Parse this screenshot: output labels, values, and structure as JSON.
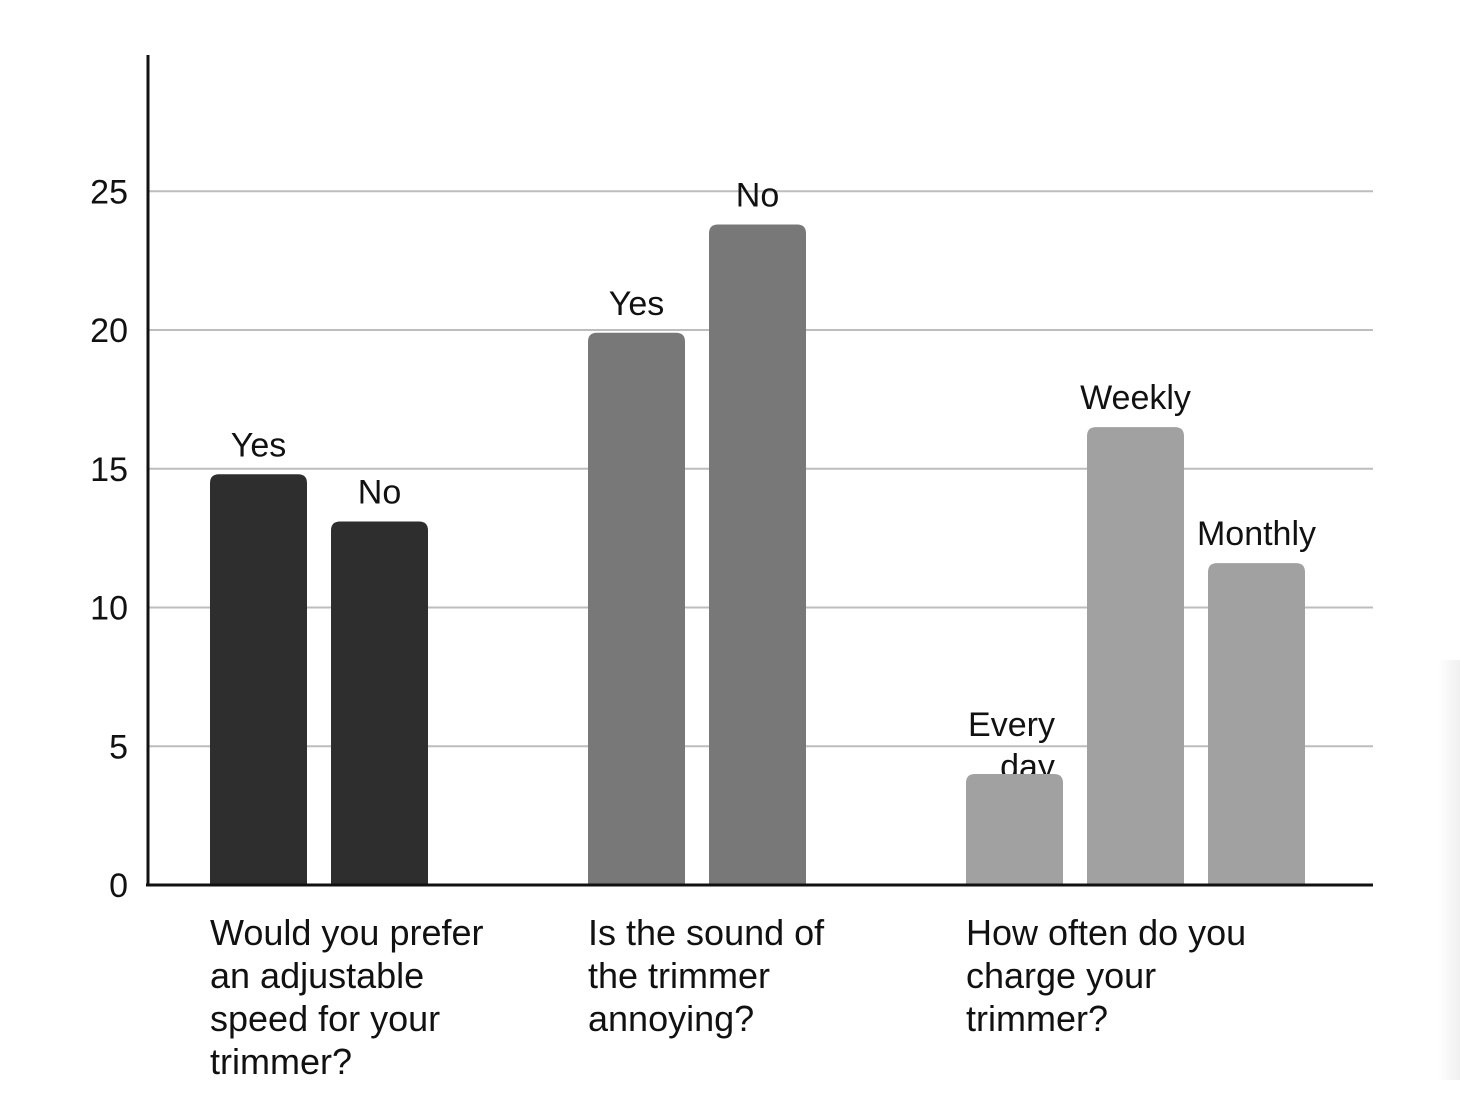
{
  "chart_data": {
    "type": "bar",
    "title": "",
    "xlabel": "",
    "ylabel": "",
    "ylim": [
      0,
      30
    ],
    "yticks": [
      0,
      5,
      10,
      15,
      20,
      25
    ],
    "grid": true,
    "legend": "none",
    "groups": [
      {
        "label": "Would you prefer an adjustable speed for your trimmer?",
        "label_lines": [
          "Would you prefer",
          "an adjustable",
          "speed for your",
          "trimmer?"
        ],
        "color": "#2e2e2e",
        "bars": [
          {
            "label": "Yes",
            "value": 14.8
          },
          {
            "label": "No",
            "value": 13.1
          }
        ]
      },
      {
        "label": "Is the sound of the trimmer annoying?",
        "label_lines": [
          "Is the sound of",
          "the trimmer",
          "annoying?"
        ],
        "color": "#787878",
        "bars": [
          {
            "label": "Yes",
            "value": 19.9
          },
          {
            "label": "No",
            "value": 23.8
          }
        ]
      },
      {
        "label": "How often do you charge your trimmer?",
        "label_lines": [
          "How often do you",
          "charge your",
          "trimmer?"
        ],
        "color": "#a1a1a1",
        "bars": [
          {
            "label": "Every day",
            "value": 4.0
          },
          {
            "label": "Weekly",
            "value": 16.5
          },
          {
            "label": "Monthly",
            "value": 11.6
          }
        ]
      }
    ]
  }
}
